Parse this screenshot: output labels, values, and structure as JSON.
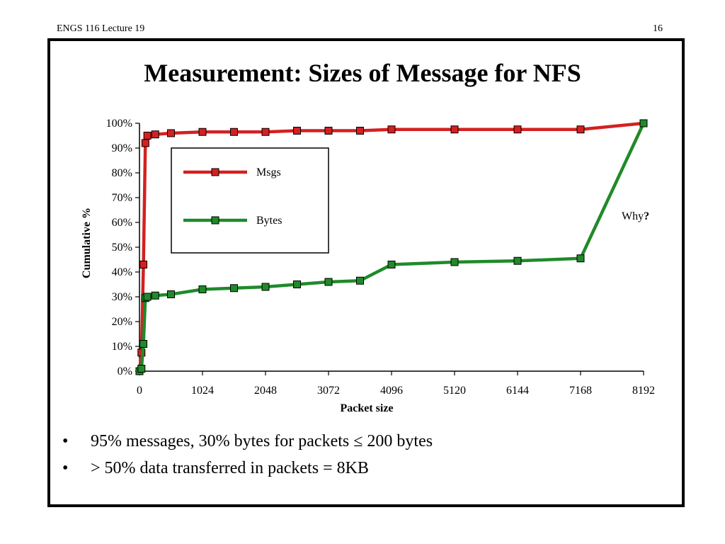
{
  "header": {
    "course": "ENGS 116  Lecture 19",
    "page": "16"
  },
  "slide": {
    "title": "Measurement:  Sizes of Message for NFS",
    "bullets": [
      "95% messages, 30% bytes for packets ≤ 200 bytes",
      "> 50% data transferred in packets = 8KB"
    ],
    "bullet_symbol": "•"
  },
  "chart_data": {
    "type": "line",
    "title": "",
    "xlabel": "Packet size",
    "ylabel": "Cumulative %",
    "xlim": [
      0,
      8192
    ],
    "ylim": [
      0,
      100
    ],
    "x_ticks": [
      0,
      1024,
      2048,
      3072,
      4096,
      5120,
      6144,
      7168,
      8192
    ],
    "y_ticks": [
      "0%",
      "10%",
      "20%",
      "30%",
      "40%",
      "50%",
      "60%",
      "70%",
      "80%",
      "90%",
      "100%"
    ],
    "legend_position": "upper-left inside plot",
    "annotation": {
      "text": "Why",
      "emphasis": "?"
    },
    "series": [
      {
        "name": "Msgs",
        "color": "#d42020",
        "x": [
          0,
          32,
          64,
          96,
          128,
          256,
          512,
          1024,
          1536,
          2048,
          2560,
          3072,
          3584,
          4096,
          5120,
          6144,
          7168,
          8192
        ],
        "y": [
          0,
          7.5,
          43,
          92,
          95,
          95.5,
          96,
          96.5,
          96.5,
          96.5,
          97,
          97,
          97,
          97.5,
          97.5,
          97.5,
          97.5,
          100
        ]
      },
      {
        "name": "Bytes",
        "color": "#1f8a2a",
        "x": [
          0,
          32,
          64,
          96,
          128,
          256,
          512,
          1024,
          1536,
          2048,
          2560,
          3072,
          3584,
          4096,
          5120,
          6144,
          7168,
          8192
        ],
        "y": [
          0,
          1,
          11,
          29.5,
          30,
          30.5,
          31,
          33,
          33.5,
          34,
          35,
          36,
          36.5,
          43,
          44,
          44.5,
          45.5,
          100
        ]
      }
    ]
  }
}
